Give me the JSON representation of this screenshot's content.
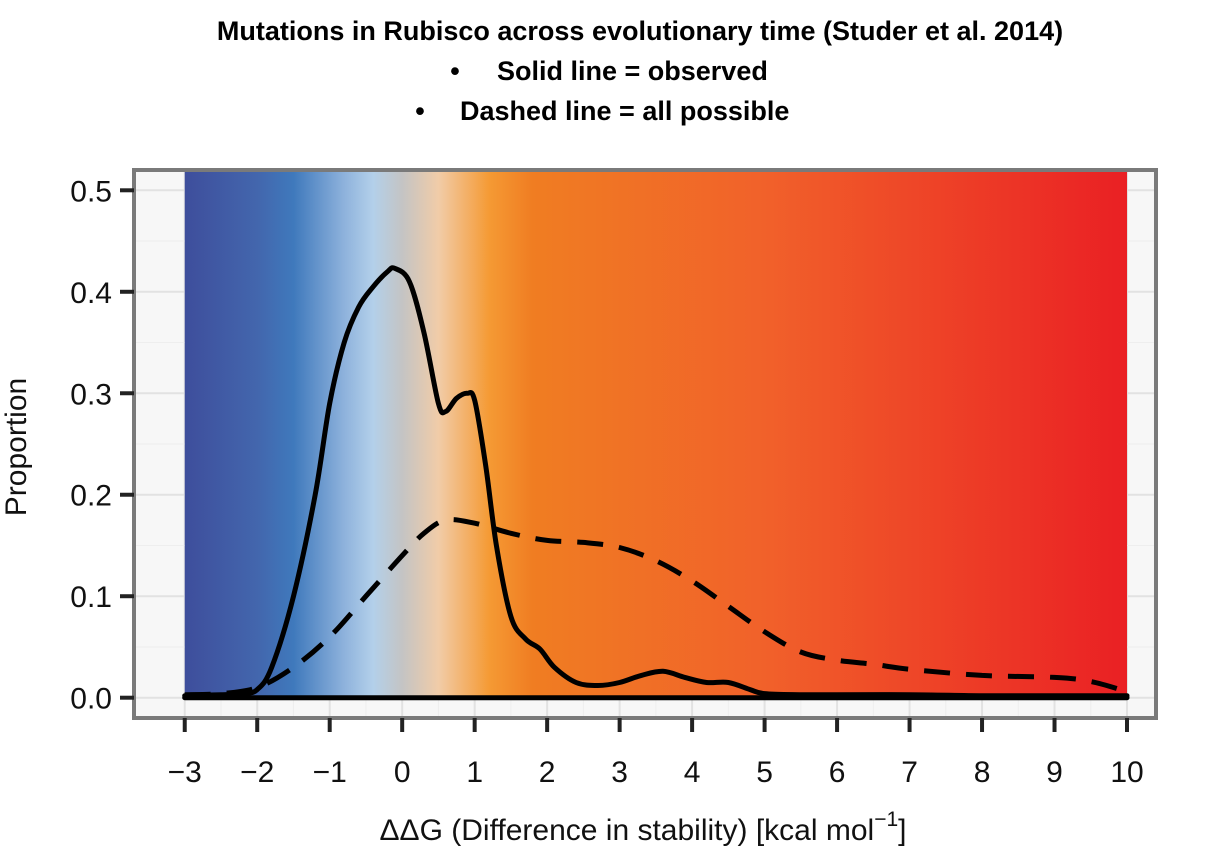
{
  "chart_data": {
    "type": "line",
    "title": "Mutations in Rubisco across evolutionary time (Studer et al. 2014)",
    "subtitle_lines": [
      "Solid line = observed",
      "Dashed line = all possible"
    ],
    "bullet": "•",
    "xlabel": "ΔΔG (Difference in stability) [kcal mol",
    "xlabel_sup": "−1",
    "xlabel_close": "]",
    "ylabel": "Proportion",
    "xlim": [
      -3.7,
      10.4
    ],
    "ylim": [
      -0.02,
      0.52
    ],
    "xticks": [
      -3,
      -2,
      -1,
      0,
      1,
      2,
      3,
      4,
      5,
      6,
      7,
      8,
      9,
      10
    ],
    "xtick_labels": [
      "−3",
      "−2",
      "−1",
      "0",
      "1",
      "2",
      "3",
      "4",
      "5",
      "6",
      "7",
      "8",
      "9",
      "10"
    ],
    "yticks": [
      0.0,
      0.1,
      0.2,
      0.3,
      0.4,
      0.5
    ],
    "ytick_labels": [
      "0.0",
      "0.1",
      "0.2",
      "0.3",
      "0.4",
      "0.5"
    ],
    "grid": true,
    "background_gradient": {
      "x_range": [
        -3,
        10
      ],
      "stops": [
        {
          "x": -3.0,
          "color": "#3e4e9c"
        },
        {
          "x": -2.0,
          "color": "#4366ad"
        },
        {
          "x": -1.5,
          "color": "#3f79bc"
        },
        {
          "x": -0.8,
          "color": "#8eb2dc"
        },
        {
          "x": -0.4,
          "color": "#b3d0ea"
        },
        {
          "x": 0.0,
          "color": "#c4c4c4"
        },
        {
          "x": 0.5,
          "color": "#f1cca8"
        },
        {
          "x": 1.2,
          "color": "#f59a34"
        },
        {
          "x": 1.8,
          "color": "#f07d22"
        },
        {
          "x": 5.0,
          "color": "#f1612a"
        },
        {
          "x": 10.0,
          "color": "#ea2024"
        }
      ]
    },
    "series": [
      {
        "name": "observed",
        "style": "solid",
        "color": "#000000",
        "x": [
          -3.0,
          -2.5,
          -2.2,
          -2.0,
          -1.8,
          -1.5,
          -1.2,
          -1.0,
          -0.8,
          -0.6,
          -0.4,
          -0.2,
          -0.1,
          0.1,
          0.3,
          0.5,
          0.6,
          0.75,
          0.9,
          1.0,
          1.15,
          1.3,
          1.5,
          1.7,
          1.9,
          2.1,
          2.4,
          2.7,
          3.0,
          3.3,
          3.6,
          3.9,
          4.2,
          4.5,
          4.8,
          5.0,
          5.5,
          6.0,
          7.0,
          8.0,
          9.0,
          10.0
        ],
        "y": [
          0.002,
          0.003,
          0.004,
          0.008,
          0.03,
          0.1,
          0.2,
          0.29,
          0.35,
          0.385,
          0.405,
          0.42,
          0.423,
          0.41,
          0.36,
          0.29,
          0.282,
          0.295,
          0.3,
          0.293,
          0.23,
          0.15,
          0.08,
          0.058,
          0.048,
          0.03,
          0.015,
          0.012,
          0.015,
          0.022,
          0.026,
          0.02,
          0.015,
          0.015,
          0.008,
          0.004,
          0.003,
          0.003,
          0.003,
          0.002,
          0.002,
          0.002
        ]
      },
      {
        "name": "all possible",
        "style": "dashed",
        "color": "#000000",
        "x": [
          -3.0,
          -2.5,
          -2.0,
          -1.5,
          -1.0,
          -0.5,
          0.0,
          0.3,
          0.6,
          1.0,
          1.5,
          2.0,
          2.5,
          3.0,
          3.5,
          4.0,
          4.5,
          5.0,
          5.5,
          6.0,
          6.5,
          7.0,
          8.0,
          9.0,
          9.5,
          10.0
        ],
        "y": [
          0.003,
          0.004,
          0.01,
          0.03,
          0.06,
          0.1,
          0.14,
          0.162,
          0.175,
          0.172,
          0.162,
          0.155,
          0.153,
          0.148,
          0.135,
          0.115,
          0.09,
          0.065,
          0.045,
          0.037,
          0.033,
          0.028,
          0.022,
          0.02,
          0.016,
          0.006
        ]
      },
      {
        "name": "zero line",
        "style": "solid",
        "color": "#000000",
        "x": [
          -3.0,
          10.0
        ],
        "y": [
          0.0,
          0.0
        ]
      }
    ]
  }
}
